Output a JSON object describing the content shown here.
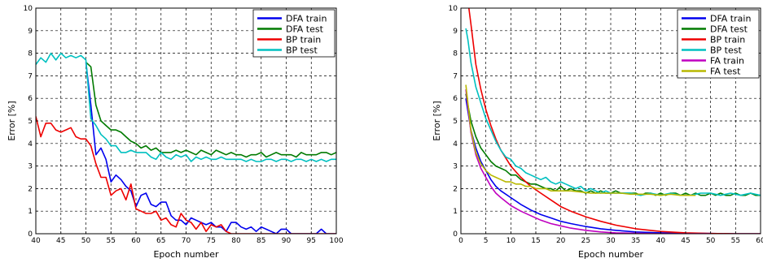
{
  "chart_data": [
    {
      "type": "line",
      "title": "",
      "xlabel": "Epoch number",
      "ylabel": "Error [%]",
      "xlim": [
        40,
        100
      ],
      "ylim": [
        0,
        10
      ],
      "xticks": [
        40,
        45,
        50,
        55,
        60,
        65,
        70,
        75,
        80,
        85,
        90,
        95,
        100
      ],
      "yticks": [
        0,
        1,
        2,
        3,
        4,
        5,
        6,
        7,
        8,
        9,
        10
      ],
      "grid": true,
      "legend_position": "top-right",
      "series": [
        {
          "name": "DFA train",
          "color": "#0000ee",
          "x": [
            50,
            51,
            52,
            53,
            54,
            55,
            56,
            57,
            58,
            59,
            60,
            61,
            62,
            63,
            64,
            65,
            66,
            67,
            68,
            69,
            70,
            71,
            72,
            73,
            74,
            75,
            76,
            77,
            78,
            79,
            80,
            81,
            82,
            83,
            84,
            85,
            86,
            87,
            88,
            89,
            90,
            91,
            92,
            93,
            94,
            95,
            96,
            97,
            98,
            99,
            100
          ],
          "values": [
            7.6,
            5.7,
            3.5,
            3.8,
            3.3,
            2.3,
            2.6,
            2.4,
            2.1,
            1.9,
            1.2,
            1.7,
            1.8,
            1.3,
            1.2,
            1.4,
            1.4,
            0.8,
            0.6,
            0.6,
            0.4,
            0.7,
            0.6,
            0.5,
            0.4,
            0.5,
            0.3,
            0.3,
            0.1,
            0.5,
            0.5,
            0.3,
            0.2,
            0.3,
            0.1,
            0.3,
            0.2,
            0.1,
            0.0,
            0.2,
            0.2,
            0.0,
            0.0,
            0.0,
            0.0,
            0.0,
            0.0,
            0.2,
            0.0,
            0.0,
            0.0
          ]
        },
        {
          "name": "DFA test",
          "color": "#007a00",
          "x": [
            50,
            51,
            52,
            53,
            54,
            55,
            56,
            57,
            58,
            59,
            60,
            61,
            62,
            63,
            64,
            65,
            66,
            67,
            68,
            69,
            70,
            71,
            72,
            73,
            74,
            75,
            76,
            77,
            78,
            79,
            80,
            81,
            82,
            83,
            84,
            85,
            86,
            87,
            88,
            89,
            90,
            91,
            92,
            93,
            94,
            95,
            96,
            97,
            98,
            99,
            100
          ],
          "values": [
            7.6,
            7.4,
            5.7,
            5.0,
            4.8,
            4.6,
            4.6,
            4.5,
            4.3,
            4.1,
            4.0,
            3.8,
            3.9,
            3.7,
            3.8,
            3.6,
            3.6,
            3.6,
            3.7,
            3.6,
            3.7,
            3.6,
            3.5,
            3.7,
            3.6,
            3.5,
            3.7,
            3.6,
            3.5,
            3.6,
            3.5,
            3.5,
            3.4,
            3.5,
            3.5,
            3.6,
            3.4,
            3.5,
            3.6,
            3.5,
            3.5,
            3.5,
            3.4,
            3.6,
            3.5,
            3.5,
            3.5,
            3.6,
            3.6,
            3.5,
            3.6
          ]
        },
        {
          "name": "BP train",
          "color": "#ee0000",
          "x": [
            40,
            41,
            42,
            43,
            44,
            45,
            46,
            47,
            48,
            49,
            50,
            51,
            52,
            53,
            54,
            55,
            56,
            57,
            58,
            59,
            60,
            61,
            62,
            63,
            64,
            65,
            66,
            67,
            68,
            69,
            70,
            71,
            72,
            73,
            74,
            75,
            76,
            77,
            78,
            79,
            80,
            81,
            82,
            83,
            84,
            85,
            86,
            87,
            88,
            89,
            90,
            91,
            92,
            93,
            94,
            95,
            96,
            97,
            98,
            99,
            100
          ],
          "values": [
            5.2,
            4.3,
            4.9,
            4.9,
            4.6,
            4.5,
            4.6,
            4.7,
            4.3,
            4.2,
            4.2,
            3.9,
            3.1,
            2.5,
            2.5,
            1.7,
            1.9,
            2.0,
            1.5,
            2.2,
            1.1,
            1.0,
            0.9,
            0.9,
            1.0,
            0.6,
            0.7,
            0.4,
            0.3,
            0.9,
            0.6,
            0.5,
            0.2,
            0.5,
            0.1,
            0.4,
            0.3,
            0.4,
            0.1,
            0.0,
            0.0,
            0.0,
            0.0,
            0.0,
            0.0,
            0.0,
            0.0,
            0.0,
            0.0,
            0.0,
            0.0,
            0.0,
            0.0,
            0.0,
            0.0,
            0.0,
            0.0,
            0.0,
            0.0,
            0.0,
            0.0
          ]
        },
        {
          "name": "BP test",
          "color": "#00c0c0",
          "x": [
            40,
            41,
            42,
            43,
            44,
            45,
            46,
            47,
            48,
            49,
            50,
            51,
            52,
            53,
            54,
            55,
            56,
            57,
            58,
            59,
            60,
            61,
            62,
            63,
            64,
            65,
            66,
            67,
            68,
            69,
            70,
            71,
            72,
            73,
            74,
            75,
            76,
            77,
            78,
            79,
            80,
            81,
            82,
            83,
            84,
            85,
            86,
            87,
            88,
            89,
            90,
            91,
            92,
            93,
            94,
            95,
            96,
            97,
            98,
            99,
            100
          ],
          "values": [
            7.5,
            7.8,
            7.6,
            8.0,
            7.7,
            8.0,
            7.8,
            7.9,
            7.8,
            7.9,
            7.7,
            5.1,
            4.8,
            4.4,
            4.2,
            3.9,
            3.9,
            3.6,
            3.6,
            3.7,
            3.6,
            3.6,
            3.6,
            3.4,
            3.3,
            3.6,
            3.4,
            3.3,
            3.5,
            3.4,
            3.5,
            3.2,
            3.4,
            3.3,
            3.4,
            3.3,
            3.3,
            3.4,
            3.3,
            3.3,
            3.3,
            3.3,
            3.2,
            3.3,
            3.2,
            3.2,
            3.3,
            3.3,
            3.2,
            3.3,
            3.3,
            3.2,
            3.3,
            3.3,
            3.2,
            3.3,
            3.2,
            3.3,
            3.2,
            3.3,
            3.3
          ]
        }
      ]
    },
    {
      "type": "line",
      "title": "",
      "xlabel": "Epoch number",
      "ylabel": "Error [%]",
      "xlim": [
        0,
        60
      ],
      "ylim": [
        0,
        10
      ],
      "xticks": [
        0,
        5,
        10,
        15,
        20,
        25,
        30,
        35,
        40,
        45,
        50,
        55,
        60
      ],
      "yticks": [
        0,
        1,
        2,
        3,
        4,
        5,
        6,
        7,
        8,
        9,
        10
      ],
      "grid": true,
      "legend_position": "top-right",
      "series": [
        {
          "name": "DFA train",
          "color": "#0000ee",
          "x": [
            1,
            2,
            3,
            4,
            5,
            6,
            7,
            8,
            10,
            12,
            14,
            16,
            18,
            20,
            22,
            25,
            28,
            31,
            35,
            40,
            45,
            50,
            55,
            60
          ],
          "values": [
            6.0,
            4.6,
            3.8,
            3.2,
            2.8,
            2.4,
            2.1,
            1.9,
            1.6,
            1.3,
            1.05,
            0.85,
            0.7,
            0.55,
            0.45,
            0.32,
            0.22,
            0.15,
            0.08,
            0.04,
            0.02,
            0.01,
            0.0,
            0.0
          ]
        },
        {
          "name": "DFA test",
          "color": "#007a00",
          "x": [
            1,
            2,
            3,
            4,
            5,
            6,
            7,
            8,
            9,
            10,
            11,
            12,
            13,
            14,
            15,
            16,
            17,
            18,
            19,
            20,
            21,
            22,
            23,
            24,
            25,
            26,
            27,
            28,
            29,
            30,
            31,
            32,
            33,
            34,
            35,
            36,
            37,
            38,
            39,
            40,
            41,
            42,
            43,
            44,
            45,
            46,
            47,
            48,
            49,
            50,
            51,
            52,
            53,
            54,
            55,
            56,
            57,
            58,
            59,
            60
          ],
          "values": [
            6.2,
            5.0,
            4.3,
            3.8,
            3.5,
            3.2,
            3.0,
            2.9,
            2.8,
            2.6,
            2.6,
            2.4,
            2.3,
            2.2,
            2.2,
            2.1,
            2.0,
            2.0,
            1.9,
            2.1,
            1.9,
            2.0,
            1.9,
            1.9,
            1.8,
            1.9,
            1.8,
            1.9,
            1.8,
            1.8,
            1.9,
            1.8,
            1.8,
            1.8,
            1.8,
            1.7,
            1.8,
            1.8,
            1.7,
            1.8,
            1.7,
            1.8,
            1.8,
            1.7,
            1.8,
            1.7,
            1.8,
            1.7,
            1.7,
            1.8,
            1.7,
            1.8,
            1.7,
            1.7,
            1.8,
            1.7,
            1.7,
            1.8,
            1.7,
            1.7
          ]
        },
        {
          "name": "BP train",
          "color": "#ee0000",
          "x": [
            1.6,
            2,
            3,
            4,
            5,
            6,
            7,
            8,
            10,
            12,
            14,
            16,
            18,
            20,
            22,
            25,
            28,
            31,
            35,
            40,
            45,
            50,
            55,
            60
          ],
          "values": [
            10.0,
            9.3,
            7.5,
            6.4,
            5.5,
            4.8,
            4.2,
            3.7,
            3.0,
            2.5,
            2.1,
            1.8,
            1.5,
            1.2,
            1.0,
            0.75,
            0.55,
            0.38,
            0.22,
            0.1,
            0.04,
            0.01,
            0.0,
            0.0
          ]
        },
        {
          "name": "BP test",
          "color": "#00c0c0",
          "x": [
            1,
            1.4,
            2,
            3,
            4,
            5,
            6,
            7,
            8,
            9,
            10,
            11,
            12,
            13,
            14,
            15,
            16,
            17,
            18,
            19,
            20,
            21,
            22,
            23,
            24,
            25,
            26,
            27,
            28,
            29,
            30,
            32,
            34,
            36,
            38,
            40,
            42,
            44,
            46,
            48,
            50,
            52,
            54,
            56,
            58,
            60
          ],
          "values": [
            9.1,
            8.6,
            7.6,
            6.5,
            5.8,
            5.1,
            4.6,
            4.1,
            3.7,
            3.4,
            3.3,
            3.0,
            2.9,
            2.7,
            2.6,
            2.5,
            2.4,
            2.5,
            2.3,
            2.2,
            2.3,
            2.2,
            2.1,
            2.0,
            2.1,
            1.9,
            2.0,
            1.9,
            1.8,
            1.9,
            1.8,
            1.8,
            1.8,
            1.7,
            1.8,
            1.7,
            1.8,
            1.7,
            1.7,
            1.8,
            1.8,
            1.7,
            1.8,
            1.7,
            1.8,
            1.7
          ]
        },
        {
          "name": "FA train",
          "color": "#c000c0",
          "x": [
            1,
            2,
            3,
            4,
            5,
            6,
            7,
            8,
            10,
            12,
            14,
            16,
            18,
            20,
            22,
            25,
            28,
            31,
            35,
            40,
            45,
            50
          ],
          "values": [
            6.4,
            4.5,
            3.5,
            2.9,
            2.5,
            2.1,
            1.8,
            1.6,
            1.25,
            1.0,
            0.8,
            0.6,
            0.45,
            0.35,
            0.25,
            0.15,
            0.08,
            0.04,
            0.02,
            0.0,
            0.0,
            0.0
          ]
        },
        {
          "name": "FA test",
          "color": "#b8b800",
          "x": [
            1,
            2,
            3,
            4,
            5,
            6,
            7,
            8,
            9,
            10,
            11,
            12,
            13,
            14,
            15,
            16,
            17,
            18,
            19,
            20,
            22,
            24,
            26,
            28,
            30,
            32,
            34,
            36,
            38,
            40,
            42,
            44,
            46,
            47
          ],
          "values": [
            6.6,
            4.6,
            3.6,
            3.1,
            2.8,
            2.6,
            2.5,
            2.4,
            2.3,
            2.3,
            2.2,
            2.2,
            2.1,
            2.1,
            2.0,
            2.0,
            2.0,
            1.9,
            1.9,
            1.9,
            1.9,
            1.85,
            1.8,
            1.8,
            1.8,
            1.8,
            1.75,
            1.75,
            1.75,
            1.7,
            1.75,
            1.7,
            1.7,
            1.7
          ]
        }
      ]
    }
  ]
}
